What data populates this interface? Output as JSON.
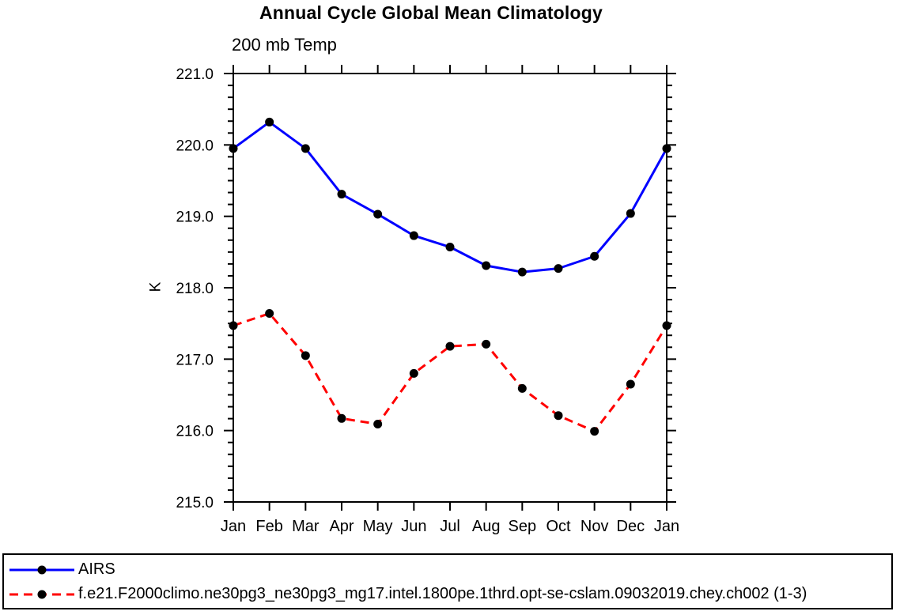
{
  "title": "Annual Cycle Global Mean Climatology",
  "subtitle": "200 mb Temp",
  "ylabel": "K",
  "chart_data": {
    "type": "line",
    "x": [
      "Jan",
      "Feb",
      "Mar",
      "Apr",
      "May",
      "Jun",
      "Jul",
      "Aug",
      "Sep",
      "Oct",
      "Nov",
      "Dec",
      "Jan"
    ],
    "xlabel": "",
    "ylim": [
      215.0,
      221.0
    ],
    "ytick_interval": 1.0,
    "ytick_labels": [
      "215.0",
      "216.0",
      "217.0",
      "218.0",
      "219.0",
      "220.0",
      "221.0"
    ],
    "minor_ticks_per_major": 5,
    "grid": false,
    "legend_position": "bottom-left-box",
    "series": [
      {
        "name": "AIRS",
        "color": "#0000ff",
        "line_style": "solid",
        "marker": "filled-circle",
        "marker_color": "#000000",
        "values": [
          219.95,
          220.32,
          219.95,
          219.31,
          219.03,
          218.73,
          218.57,
          218.31,
          218.22,
          218.27,
          218.44,
          219.04,
          219.95
        ]
      },
      {
        "name": "f.e21.F2000climo.ne30pg3_ne30pg3_mg17.intel.1800pe.1thrd.opt-se-cslam.09032019.chey.ch002 (1-3)",
        "color": "#ff0000",
        "line_style": "dashed",
        "marker": "filled-circle",
        "marker_color": "#000000",
        "values": [
          217.47,
          217.64,
          217.05,
          216.17,
          216.09,
          216.8,
          217.18,
          217.21,
          216.59,
          216.21,
          215.99,
          216.65,
          217.47
        ]
      }
    ]
  },
  "colors": {
    "axis": "#000000",
    "background": "#ffffff"
  }
}
